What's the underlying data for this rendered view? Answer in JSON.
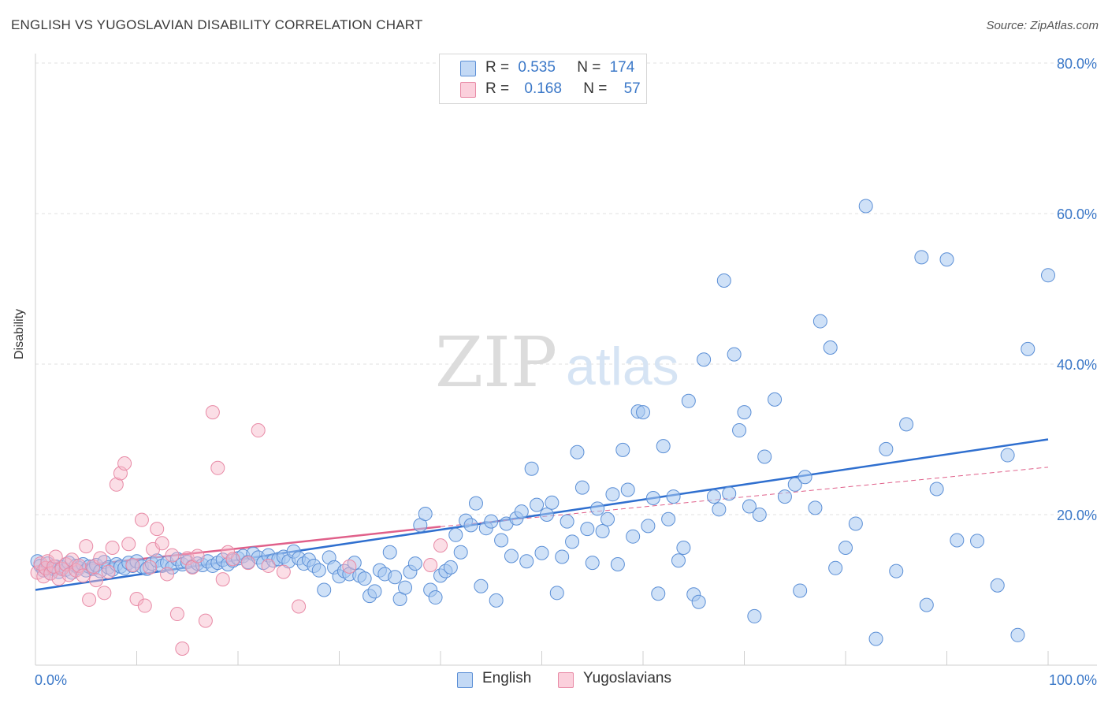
{
  "header": {
    "title": "ENGLISH VS YUGOSLAVIAN DISABILITY CORRELATION CHART",
    "source": "Source: ZipAtlas.com"
  },
  "watermark": {
    "zip": "ZIP",
    "atlas": "atlas"
  },
  "legend_top": {
    "rows": [
      {
        "r_label": "R =",
        "r_value": "0.535",
        "n_label": "N =",
        "n_value": "174",
        "color": "#a8c8f0"
      },
      {
        "r_label": "R =",
        "r_value": "0.168",
        "n_label": "N =",
        "n_value": "57",
        "color": "#f7b6c8"
      }
    ]
  },
  "legend_bottom": {
    "english": "English",
    "yugoslavians": "Yugoslavians"
  },
  "colors": {
    "english_fill": "#a8c8f0",
    "english_stroke": "#5b8fd6",
    "english_line": "#2f6fcf",
    "yugo_fill": "#f7b6c8",
    "yugo_stroke": "#e88aa6",
    "yugo_line": "#e0608a",
    "axis_text": "#3b78c8",
    "grid": "#e2e2e2"
  },
  "chart_data": {
    "type": "scatter",
    "title": "ENGLISH VS YUGOSLAVIAN DISABILITY CORRELATION CHART",
    "xlabel": "",
    "ylabel": "Disability",
    "xlim": [
      0,
      100
    ],
    "ylim": [
      0,
      80
    ],
    "x_tick_labels": [
      "0.0%",
      "100.0%"
    ],
    "y_tick_labels": [
      "20.0%",
      "40.0%",
      "60.0%",
      "80.0%"
    ],
    "y_ticks": [
      20,
      40,
      60,
      80
    ],
    "grid": "horizontal dashed",
    "legend_placement": "top-center and bottom-center",
    "series": [
      {
        "name": "English",
        "r": 0.535,
        "n": 174,
        "trend": {
          "x": [
            0,
            100
          ],
          "y": [
            10.0,
            30.0
          ]
        },
        "points": [
          [
            0.2,
            13.8
          ],
          [
            0.5,
            13.2
          ],
          [
            0.8,
            12.6
          ],
          [
            1.0,
            12.9
          ],
          [
            1.2,
            13.5
          ],
          [
            1.5,
            12.2
          ],
          [
            1.8,
            12.8
          ],
          [
            2.0,
            13.1
          ],
          [
            2.3,
            12.4
          ],
          [
            2.6,
            13.0
          ],
          [
            3.0,
            12.7
          ],
          [
            3.3,
            13.6
          ],
          [
            3.6,
            12.3
          ],
          [
            4.0,
            13.2
          ],
          [
            4.3,
            12.9
          ],
          [
            4.7,
            13.4
          ],
          [
            5.0,
            12.6
          ],
          [
            5.3,
            13.1
          ],
          [
            5.7,
            12.8
          ],
          [
            6.0,
            13.3
          ],
          [
            6.4,
            12.5
          ],
          [
            6.8,
            13.7
          ],
          [
            7.2,
            13.0
          ],
          [
            7.6,
            12.7
          ],
          [
            8.0,
            13.4
          ],
          [
            8.4,
            13.1
          ],
          [
            8.8,
            12.9
          ],
          [
            9.2,
            13.6
          ],
          [
            9.6,
            13.2
          ],
          [
            10.0,
            13.8
          ],
          [
            10.5,
            13.1
          ],
          [
            11.0,
            12.8
          ],
          [
            11.5,
            13.5
          ],
          [
            12.0,
            13.9
          ],
          [
            12.5,
            13.2
          ],
          [
            13.0,
            13.6
          ],
          [
            13.5,
            13.0
          ],
          [
            14.0,
            14.1
          ],
          [
            14.5,
            13.4
          ],
          [
            15.0,
            13.7
          ],
          [
            15.5,
            13.1
          ],
          [
            16.0,
            13.5
          ],
          [
            16.5,
            13.3
          ],
          [
            17.0,
            13.8
          ],
          [
            17.5,
            13.2
          ],
          [
            18.0,
            13.6
          ],
          [
            18.5,
            14.0
          ],
          [
            19.0,
            13.4
          ],
          [
            19.5,
            13.9
          ],
          [
            20.0,
            14.2
          ],
          [
            20.5,
            14.5
          ],
          [
            21.0,
            13.7
          ],
          [
            21.5,
            14.8
          ],
          [
            22.0,
            14.3
          ],
          [
            22.5,
            13.6
          ],
          [
            23.0,
            14.6
          ],
          [
            23.5,
            13.9
          ],
          [
            24.0,
            14.1
          ],
          [
            24.5,
            14.4
          ],
          [
            25.0,
            13.8
          ],
          [
            25.5,
            15.1
          ],
          [
            26.0,
            14.2
          ],
          [
            26.5,
            13.5
          ],
          [
            27.0,
            14.0
          ],
          [
            27.5,
            13.2
          ],
          [
            28.0,
            12.6
          ],
          [
            28.5,
            10.0
          ],
          [
            29.0,
            14.3
          ],
          [
            29.5,
            13.0
          ],
          [
            30.0,
            11.8
          ],
          [
            30.5,
            12.5
          ],
          [
            31.0,
            12.1
          ],
          [
            31.5,
            13.6
          ],
          [
            32.0,
            11.9
          ],
          [
            32.5,
            11.5
          ],
          [
            33.0,
            9.2
          ],
          [
            33.5,
            9.8
          ],
          [
            34.0,
            12.6
          ],
          [
            34.5,
            12.1
          ],
          [
            35.0,
            15.0
          ],
          [
            35.5,
            11.7
          ],
          [
            36.0,
            8.8
          ],
          [
            36.5,
            10.3
          ],
          [
            37.0,
            12.4
          ],
          [
            37.5,
            13.5
          ],
          [
            38.0,
            18.6
          ],
          [
            38.5,
            20.1
          ],
          [
            39.0,
            10.0
          ],
          [
            39.5,
            9.0
          ],
          [
            40.0,
            11.9
          ],
          [
            40.5,
            12.5
          ],
          [
            41.0,
            13.0
          ],
          [
            41.5,
            17.3
          ],
          [
            42.0,
            15.0
          ],
          [
            42.5,
            19.2
          ],
          [
            43.0,
            18.6
          ],
          [
            43.5,
            21.5
          ],
          [
            44.0,
            10.5
          ],
          [
            44.5,
            18.2
          ],
          [
            45.0,
            19.1
          ],
          [
            45.5,
            8.6
          ],
          [
            46.0,
            16.6
          ],
          [
            46.5,
            18.8
          ],
          [
            47.0,
            14.5
          ],
          [
            47.5,
            19.5
          ],
          [
            48.0,
            20.4
          ],
          [
            48.5,
            13.8
          ],
          [
            49.0,
            26.1
          ],
          [
            49.5,
            21.3
          ],
          [
            50.0,
            14.9
          ],
          [
            50.5,
            20.0
          ],
          [
            51.0,
            21.6
          ],
          [
            51.5,
            9.6
          ],
          [
            52.0,
            14.4
          ],
          [
            52.5,
            19.1
          ],
          [
            53.0,
            16.4
          ],
          [
            53.5,
            28.3
          ],
          [
            54.0,
            23.6
          ],
          [
            54.5,
            18.1
          ],
          [
            55.0,
            13.6
          ],
          [
            55.5,
            20.8
          ],
          [
            56.0,
            17.8
          ],
          [
            56.5,
            19.4
          ],
          [
            57.0,
            22.7
          ],
          [
            57.5,
            13.4
          ],
          [
            58.0,
            28.6
          ],
          [
            58.5,
            23.3
          ],
          [
            59.0,
            17.1
          ],
          [
            59.5,
            33.7
          ],
          [
            60.0,
            33.6
          ],
          [
            60.5,
            18.5
          ],
          [
            61.0,
            22.2
          ],
          [
            61.5,
            9.5
          ],
          [
            62.0,
            29.1
          ],
          [
            62.5,
            19.4
          ],
          [
            63.0,
            22.4
          ],
          [
            63.5,
            13.9
          ],
          [
            64.0,
            15.6
          ],
          [
            64.5,
            35.1
          ],
          [
            65.0,
            9.4
          ],
          [
            65.5,
            8.4
          ],
          [
            66.0,
            40.6
          ],
          [
            67.0,
            22.4
          ],
          [
            67.5,
            20.7
          ],
          [
            68.0,
            51.1
          ],
          [
            68.5,
            22.8
          ],
          [
            69.0,
            41.3
          ],
          [
            69.5,
            31.2
          ],
          [
            70.0,
            33.6
          ],
          [
            70.5,
            21.1
          ],
          [
            71.0,
            6.5
          ],
          [
            71.5,
            20.0
          ],
          [
            72.0,
            27.7
          ],
          [
            73.0,
            35.3
          ],
          [
            74.0,
            22.4
          ],
          [
            75.0,
            24.0
          ],
          [
            75.5,
            9.9
          ],
          [
            76.0,
            25.0
          ],
          [
            77.0,
            20.9
          ],
          [
            77.5,
            45.7
          ],
          [
            78.5,
            42.2
          ],
          [
            79.0,
            12.9
          ],
          [
            80.0,
            15.6
          ],
          [
            81.0,
            18.8
          ],
          [
            82.0,
            61.0
          ],
          [
            83.0,
            3.5
          ],
          [
            84.0,
            28.7
          ],
          [
            85.0,
            12.5
          ],
          [
            86.0,
            32.0
          ],
          [
            87.5,
            54.2
          ],
          [
            88.0,
            8.0
          ],
          [
            89.0,
            23.4
          ],
          [
            90.0,
            53.9
          ],
          [
            91.0,
            16.6
          ],
          [
            93.0,
            16.5
          ],
          [
            95.0,
            10.6
          ],
          [
            96.0,
            27.9
          ],
          [
            97.0,
            4.0
          ],
          [
            98.0,
            42.0
          ],
          [
            100.0,
            51.8
          ]
        ]
      },
      {
        "name": "Yugoslavians",
        "r": 0.168,
        "n": 57,
        "trend": {
          "x": [
            0,
            40
          ],
          "y": [
            12.6,
            18.4
          ]
        },
        "trend_extension": {
          "x": [
            40,
            100
          ],
          "y": [
            18.4,
            26.3
          ]
        },
        "points": [
          [
            0.2,
            12.3
          ],
          [
            0.5,
            13.5
          ],
          [
            0.8,
            11.8
          ],
          [
            1.0,
            12.9
          ],
          [
            1.2,
            13.8
          ],
          [
            1.5,
            12.2
          ],
          [
            1.8,
            13.1
          ],
          [
            2.0,
            14.4
          ],
          [
            2.3,
            11.5
          ],
          [
            2.6,
            12.8
          ],
          [
            3.0,
            13.4
          ],
          [
            3.3,
            12.0
          ],
          [
            3.6,
            14.0
          ],
          [
            4.0,
            12.6
          ],
          [
            4.3,
            13.2
          ],
          [
            4.7,
            11.9
          ],
          [
            5.0,
            15.8
          ],
          [
            5.3,
            8.7
          ],
          [
            5.7,
            13.1
          ],
          [
            6.0,
            11.3
          ],
          [
            6.4,
            14.2
          ],
          [
            6.8,
            9.6
          ],
          [
            7.2,
            12.4
          ],
          [
            7.6,
            15.6
          ],
          [
            8.0,
            24.0
          ],
          [
            8.4,
            25.5
          ],
          [
            8.8,
            26.8
          ],
          [
            9.2,
            16.1
          ],
          [
            9.6,
            13.3
          ],
          [
            10.0,
            8.8
          ],
          [
            10.5,
            19.3
          ],
          [
            10.8,
            7.9
          ],
          [
            11.3,
            13.0
          ],
          [
            11.6,
            15.4
          ],
          [
            12.0,
            18.1
          ],
          [
            12.5,
            16.2
          ],
          [
            13.0,
            12.1
          ],
          [
            13.5,
            14.6
          ],
          [
            14.0,
            6.8
          ],
          [
            14.5,
            2.2
          ],
          [
            15.0,
            14.2
          ],
          [
            15.5,
            13.0
          ],
          [
            16.0,
            14.5
          ],
          [
            16.8,
            5.9
          ],
          [
            17.5,
            33.6
          ],
          [
            18.0,
            26.2
          ],
          [
            18.5,
            11.4
          ],
          [
            19.0,
            15.0
          ],
          [
            19.5,
            14.1
          ],
          [
            21.0,
            13.6
          ],
          [
            22.0,
            31.2
          ],
          [
            23.0,
            13.2
          ],
          [
            24.5,
            12.4
          ],
          [
            26.0,
            7.8
          ],
          [
            31.0,
            13.1
          ],
          [
            39.0,
            13.3
          ],
          [
            40.0,
            15.9
          ]
        ]
      }
    ]
  }
}
